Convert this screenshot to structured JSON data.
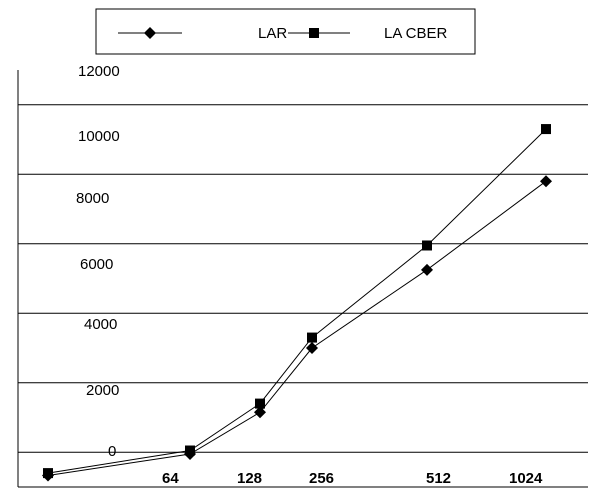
{
  "chart_data": {
    "type": "line",
    "categories": [
      "",
      "64",
      "128",
      "256",
      "512",
      "1024"
    ],
    "series": [
      {
        "name": "LAR",
        "marker": "diamond",
        "color": "#000000",
        "values": [
          330,
          950,
          2150,
          4000,
          6250,
          8800
        ]
      },
      {
        "name": "LA CBER",
        "marker": "square",
        "color": "#000000",
        "values": [
          400,
          1050,
          2400,
          4300,
          6950,
          10300
        ]
      }
    ],
    "y_tick_labels": [
      "0",
      "2000",
      "4000",
      "6000",
      "8000",
      "10000",
      "12000"
    ],
    "ylim": [
      0,
      12000
    ],
    "grid": true,
    "legend_position": "top"
  }
}
